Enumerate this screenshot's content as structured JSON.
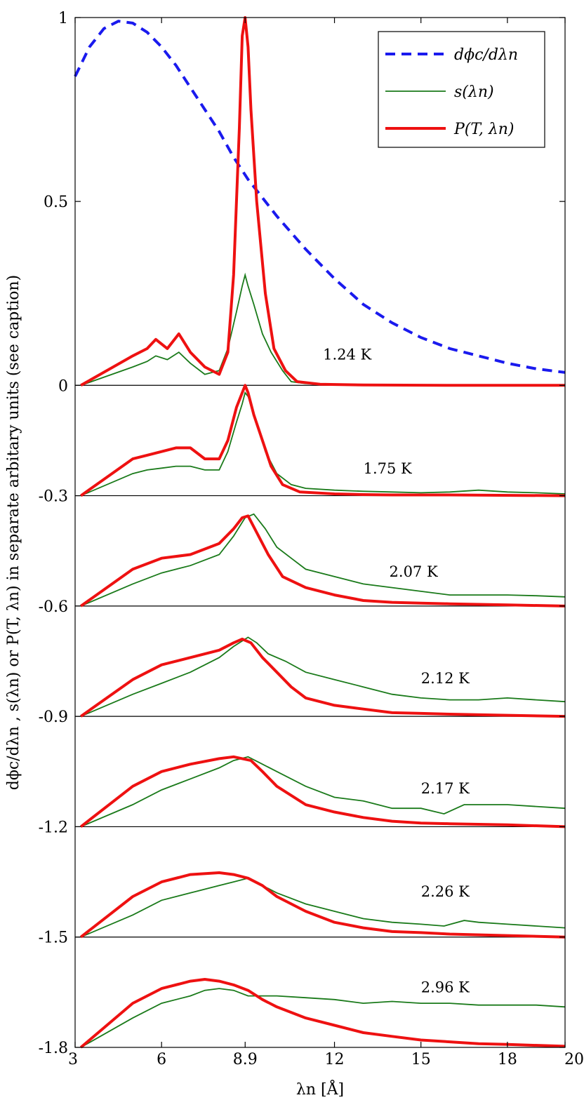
{
  "chart_data": {
    "type": "line",
    "xlabel": "λn [Å]",
    "ylabel": "dϕc/dλn , s(λn) or P(T, λn) in separate arbitary units (see caption)",
    "xlim": [
      3,
      20
    ],
    "ylim": [
      -1.8,
      1
    ],
    "x_ticks": [
      3,
      6,
      8.9,
      12,
      15,
      18,
      20
    ],
    "x_tick_labels": [
      "3",
      "6",
      "8.9",
      "12",
      "15",
      "18",
      "20"
    ],
    "y_ticks": [
      1,
      0.5,
      0,
      -0.3,
      -0.6,
      -0.9,
      -1.2,
      -1.5,
      -1.8
    ],
    "y_tick_labels": [
      "1",
      "0.5",
      "0",
      "-0.3",
      "-0.6",
      "-0.9",
      "-1.2",
      "-1.5",
      "-1.8"
    ],
    "baselines": [
      0,
      -0.3,
      -0.6,
      -0.9,
      -1.2,
      -1.5
    ],
    "legend": {
      "position": "top-right",
      "entries": [
        {
          "label": "dϕc/dλn",
          "style": "dashed",
          "color": "#1a1aee"
        },
        {
          "label": "s(λn)",
          "style": "thin",
          "color": "#1a7a1a"
        },
        {
          "label": "P(T, λn)",
          "style": "thick",
          "color": "#ee1111"
        }
      ]
    },
    "flux_curve": {
      "color": "#1a1aee",
      "x": [
        3,
        3.5,
        4,
        4.5,
        5,
        5.5,
        6,
        6.5,
        7,
        7.5,
        8,
        8.5,
        9,
        9.5,
        10,
        11,
        12,
        13,
        14,
        15,
        16,
        17,
        18,
        19,
        20
      ],
      "y": [
        0.84,
        0.92,
        0.97,
        0.99,
        0.985,
        0.96,
        0.92,
        0.87,
        0.81,
        0.75,
        0.69,
        0.62,
        0.56,
        0.51,
        0.46,
        0.37,
        0.29,
        0.22,
        0.17,
        0.13,
        0.1,
        0.08,
        0.06,
        0.045,
        0.035
      ]
    },
    "panels": [
      {
        "temperature": "1.24 K",
        "baseline": 0,
        "label_x": 11.6,
        "label_offset": 0.07,
        "s": {
          "x": [
            3.2,
            5,
            5.5,
            5.8,
            6.2,
            6.6,
            7.0,
            7.5,
            8.0,
            8.3,
            8.6,
            8.8,
            8.9,
            9.0,
            9.2,
            9.5,
            9.8,
            10.2,
            10.5,
            11,
            12,
            14,
            16,
            20
          ],
          "y": [
            0,
            0.05,
            0.065,
            0.08,
            0.07,
            0.09,
            0.06,
            0.03,
            0.04,
            0.1,
            0.2,
            0.27,
            0.3,
            0.27,
            0.22,
            0.14,
            0.09,
            0.04,
            0.01,
            0.005,
            0.003,
            0.002,
            0.001,
            0
          ]
        },
        "p": {
          "x": [
            3.2,
            5,
            5.5,
            5.8,
            6.2,
            6.6,
            7.0,
            7.5,
            8.0,
            8.3,
            8.5,
            8.7,
            8.8,
            8.9,
            9.0,
            9.1,
            9.3,
            9.6,
            9.9,
            10.3,
            10.7,
            11.5,
            13,
            16,
            20
          ],
          "y": [
            0,
            0.08,
            0.1,
            0.125,
            0.1,
            0.14,
            0.09,
            0.05,
            0.03,
            0.09,
            0.3,
            0.7,
            0.95,
            1.0,
            0.92,
            0.75,
            0.5,
            0.25,
            0.1,
            0.04,
            0.01,
            0.003,
            0.001,
            0,
            0
          ]
        }
      },
      {
        "temperature": "1.75 K",
        "baseline": -0.3,
        "label_x": 13.0,
        "label_offset": 0.06,
        "s": {
          "x": [
            3.2,
            5,
            5.5,
            6,
            6.5,
            7.0,
            7.5,
            8.0,
            8.3,
            8.6,
            8.8,
            8.9,
            9.0,
            9.3,
            9.6,
            10,
            10.5,
            11,
            12,
            13,
            14,
            15,
            16,
            17,
            18,
            19,
            20
          ],
          "y": [
            0,
            0.06,
            0.07,
            0.075,
            0.08,
            0.08,
            0.07,
            0.07,
            0.12,
            0.2,
            0.25,
            0.28,
            0.27,
            0.2,
            0.12,
            0.06,
            0.03,
            0.02,
            0.015,
            0.012,
            0.01,
            0.008,
            0.01,
            0.015,
            0.01,
            0.008,
            0.005
          ]
        },
        "p": {
          "x": [
            3.2,
            5,
            5.5,
            6,
            6.5,
            7.0,
            7.5,
            8.0,
            8.3,
            8.6,
            8.8,
            8.9,
            9.0,
            9.2,
            9.5,
            9.8,
            10.2,
            10.8,
            12,
            13,
            14,
            16,
            20
          ],
          "y": [
            0,
            0.1,
            0.11,
            0.12,
            0.13,
            0.13,
            0.1,
            0.1,
            0.15,
            0.24,
            0.28,
            0.3,
            0.28,
            0.22,
            0.15,
            0.08,
            0.03,
            0.01,
            0.005,
            0.003,
            0.002,
            0.002,
            0
          ]
        }
      },
      {
        "temperature": "2.07 K",
        "baseline": -0.6,
        "label_x": 13.9,
        "label_offset": 0.08,
        "s": {
          "x": [
            3.2,
            5,
            6,
            7,
            8,
            8.5,
            8.9,
            9.2,
            9.6,
            10,
            10.5,
            11,
            12,
            13,
            14,
            15,
            16,
            17,
            18,
            19,
            20
          ],
          "y": [
            0,
            0.06,
            0.09,
            0.11,
            0.14,
            0.19,
            0.24,
            0.25,
            0.21,
            0.16,
            0.13,
            0.1,
            0.08,
            0.06,
            0.05,
            0.04,
            0.03,
            0.03,
            0.03,
            0.028,
            0.025
          ]
        },
        "p": {
          "x": [
            3.2,
            5,
            6,
            7,
            8,
            8.5,
            8.8,
            9.0,
            9.3,
            9.7,
            10.2,
            11,
            12,
            13,
            14,
            15,
            16,
            18,
            20
          ],
          "y": [
            0,
            0.1,
            0.13,
            0.14,
            0.17,
            0.21,
            0.24,
            0.245,
            0.2,
            0.14,
            0.08,
            0.05,
            0.03,
            0.015,
            0.01,
            0.008,
            0.006,
            0.003,
            0
          ]
        }
      },
      {
        "temperature": "2.12 K",
        "baseline": -0.9,
        "label_x": 15.0,
        "label_offset": 0.09,
        "s": {
          "x": [
            3.2,
            5,
            6,
            7,
            8,
            8.5,
            9.0,
            9.3,
            9.7,
            10.3,
            11,
            12,
            13,
            14,
            15,
            16,
            17,
            18,
            19,
            20
          ],
          "y": [
            0,
            0.06,
            0.09,
            0.12,
            0.16,
            0.19,
            0.215,
            0.2,
            0.17,
            0.15,
            0.12,
            0.1,
            0.08,
            0.06,
            0.05,
            0.045,
            0.045,
            0.05,
            0.045,
            0.04
          ]
        },
        "p": {
          "x": [
            3.2,
            5,
            6,
            7,
            8,
            8.5,
            8.8,
            9.1,
            9.5,
            10,
            10.5,
            11,
            12,
            13,
            14,
            15,
            16,
            18,
            20
          ],
          "y": [
            0,
            0.1,
            0.14,
            0.16,
            0.18,
            0.2,
            0.21,
            0.2,
            0.16,
            0.12,
            0.08,
            0.05,
            0.03,
            0.02,
            0.01,
            0.008,
            0.006,
            0.003,
            0
          ]
        }
      },
      {
        "temperature": "2.17 K",
        "baseline": -1.2,
        "label_x": 15.0,
        "label_offset": 0.09,
        "s": {
          "x": [
            3.2,
            5,
            6,
            7,
            8,
            8.5,
            9.0,
            9.5,
            10,
            11,
            12,
            13,
            14,
            15,
            15.8,
            16.5,
            17,
            18,
            19,
            20
          ],
          "y": [
            0,
            0.06,
            0.1,
            0.13,
            0.16,
            0.18,
            0.19,
            0.17,
            0.15,
            0.11,
            0.08,
            0.07,
            0.05,
            0.05,
            0.035,
            0.06,
            0.06,
            0.06,
            0.055,
            0.05
          ]
        },
        "p": {
          "x": [
            3.2,
            5,
            6,
            7,
            8,
            8.5,
            8.8,
            9.1,
            9.5,
            10,
            11,
            12,
            13,
            14,
            15,
            16,
            18,
            20
          ],
          "y": [
            0,
            0.11,
            0.15,
            0.17,
            0.185,
            0.19,
            0.185,
            0.18,
            0.15,
            0.11,
            0.06,
            0.04,
            0.025,
            0.015,
            0.01,
            0.008,
            0.005,
            0
          ]
        }
      },
      {
        "temperature": "2.26 K",
        "baseline": -1.5,
        "label_x": 15.0,
        "label_offset": 0.11,
        "s": {
          "x": [
            3.2,
            5,
            6,
            7,
            8,
            8.5,
            9.0,
            9.5,
            10,
            11,
            12,
            13,
            14,
            15,
            15.8,
            16.5,
            17,
            18,
            19,
            20
          ],
          "y": [
            0,
            0.06,
            0.1,
            0.12,
            0.14,
            0.15,
            0.16,
            0.14,
            0.12,
            0.09,
            0.07,
            0.05,
            0.04,
            0.035,
            0.03,
            0.045,
            0.04,
            0.035,
            0.03,
            0.025
          ]
        },
        "p": {
          "x": [
            3.2,
            5,
            6,
            7,
            8,
            8.5,
            9.0,
            9.5,
            10,
            11,
            12,
            13,
            14,
            15,
            16,
            18,
            20
          ],
          "y": [
            0,
            0.11,
            0.15,
            0.17,
            0.175,
            0.17,
            0.16,
            0.14,
            0.11,
            0.07,
            0.04,
            0.025,
            0.015,
            0.012,
            0.008,
            0.004,
            0
          ]
        }
      },
      {
        "temperature": "2.96 K",
        "baseline": -1.8,
        "label_x": 15.0,
        "label_offset": 0.15,
        "s": {
          "x": [
            3.2,
            5,
            6,
            7,
            7.5,
            8,
            8.5,
            9.0,
            9.5,
            10,
            11,
            12,
            13,
            14,
            15,
            16,
            17,
            18,
            19,
            20
          ],
          "y": [
            0,
            0.08,
            0.12,
            0.14,
            0.155,
            0.16,
            0.155,
            0.14,
            0.14,
            0.14,
            0.135,
            0.13,
            0.12,
            0.125,
            0.12,
            0.12,
            0.115,
            0.115,
            0.115,
            0.11
          ]
        },
        "p": {
          "x": [
            3.2,
            5,
            6,
            7,
            7.5,
            8,
            8.5,
            9.0,
            9.5,
            10,
            11,
            12,
            13,
            14,
            15,
            16,
            17,
            18,
            20
          ],
          "y": [
            0,
            0.12,
            0.16,
            0.18,
            0.185,
            0.18,
            0.17,
            0.155,
            0.13,
            0.11,
            0.08,
            0.06,
            0.04,
            0.03,
            0.02,
            0.015,
            0.01,
            0.008,
            0.003
          ]
        }
      }
    ]
  }
}
